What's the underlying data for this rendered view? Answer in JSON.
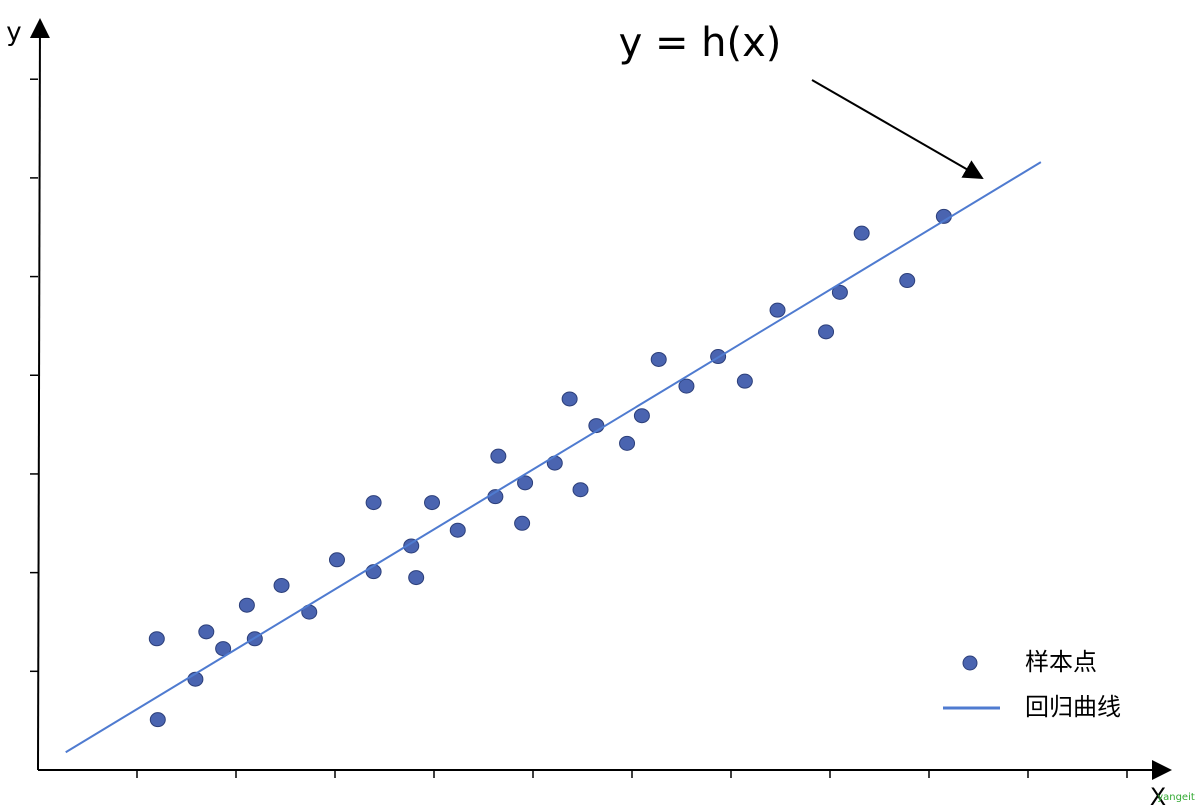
{
  "chart_data": {
    "type": "scatter",
    "annotation": "y = h(x)",
    "x_label": "X",
    "y_label": "y",
    "watermark": "yangeit",
    "xlim": [
      0,
      11.4
    ],
    "ylim": [
      0,
      7.6
    ],
    "xticks": [
      1,
      2,
      3,
      4,
      5,
      6,
      7,
      8,
      9,
      10,
      11
    ],
    "yticks": [
      1,
      2,
      3,
      4,
      5,
      6,
      7
    ],
    "tick_labels": false,
    "legend": "lower right",
    "series": [
      {
        "name": "样本点",
        "color": "#4a64b0",
        "x": [
          1.2,
          1.21,
          1.59,
          1.7,
          1.87,
          2.11,
          2.19,
          2.46,
          2.74,
          3.02,
          3.39,
          3.39,
          3.77,
          3.82,
          3.98,
          4.24,
          4.62,
          4.65,
          4.89,
          4.92,
          5.22,
          5.37,
          5.48,
          5.64,
          5.95,
          6.1,
          6.27,
          6.55,
          6.87,
          7.14,
          7.47,
          7.96,
          8.1,
          8.32,
          8.78,
          9.15
        ],
        "values": [
          1.33,
          0.51,
          0.92,
          1.4,
          1.23,
          1.67,
          1.33,
          1.87,
          1.6,
          2.13,
          2.71,
          2.01,
          2.27,
          1.95,
          2.71,
          2.43,
          2.77,
          3.18,
          2.5,
          2.91,
          3.11,
          3.76,
          2.84,
          3.49,
          3.31,
          3.59,
          4.16,
          3.89,
          4.19,
          3.94,
          4.66,
          4.44,
          4.84,
          5.44,
          4.96,
          5.61
        ]
      },
      {
        "name": "回归曲线",
        "color": "#4f7bd0",
        "type": "line",
        "x": [
          0.28,
          10.13
        ],
        "values": [
          0.18,
          6.16
        ]
      }
    ]
  }
}
